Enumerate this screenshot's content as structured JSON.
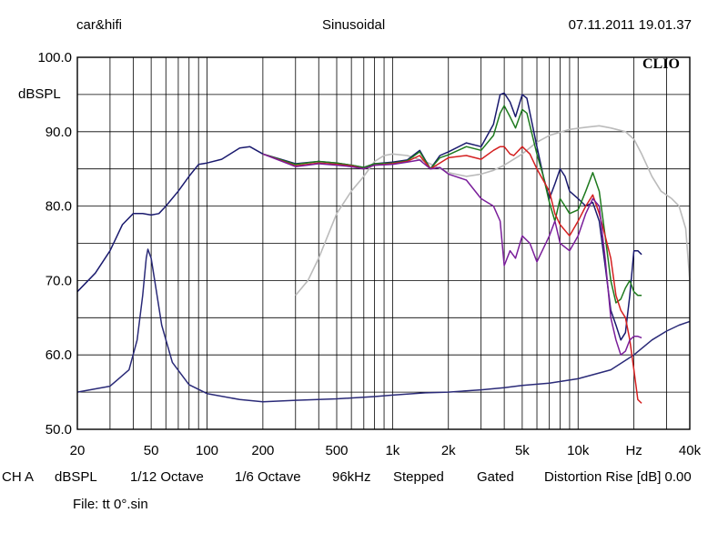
{
  "header": {
    "left": "car&hifi",
    "center": "Sinusoidal",
    "right": "07.11.2011 19.01.37"
  },
  "brand": "CLIO",
  "info": {
    "channel": "CH A",
    "unit": "dBSPL",
    "smoothing1": "1/12 Octave",
    "smoothing2": "1/6 Octave",
    "rate": "96kHz",
    "mode": "Stepped",
    "window": "Gated",
    "distortion": "Distortion Rise [dB] 0.00"
  },
  "file": "File: tt 0°.sin",
  "chart_data": {
    "type": "line",
    "title": "Sinusoidal",
    "ylabel": "dBSPL",
    "xlabel": "Hz",
    "xscale": "log",
    "xlim": [
      20,
      40000
    ],
    "ylim": [
      50,
      100
    ],
    "grid": true,
    "y_ticks": [
      "50.0",
      "60.0",
      "70.0",
      "80.0",
      "90.0",
      "100.0"
    ],
    "x_ticks": [
      {
        "v": 20,
        "label": "20"
      },
      {
        "v": 50,
        "label": "50"
      },
      {
        "v": 100,
        "label": "100"
      },
      {
        "v": 200,
        "label": "200"
      },
      {
        "v": 500,
        "label": "500"
      },
      {
        "v": 1000,
        "label": "1k"
      },
      {
        "v": 2000,
        "label": "2k"
      },
      {
        "v": 5000,
        "label": "5k"
      },
      {
        "v": 10000,
        "label": "10k"
      },
      {
        "v": 20000,
        "label": "Hz"
      },
      {
        "v": 40000,
        "label": "40k"
      }
    ],
    "series": [
      {
        "name": "impedance",
        "color": "#2a2a78",
        "points": [
          [
            20,
            55
          ],
          [
            30,
            55.8
          ],
          [
            38,
            58
          ],
          [
            42,
            62
          ],
          [
            45,
            68
          ],
          [
            47,
            73
          ],
          [
            48,
            74.2
          ],
          [
            50,
            73
          ],
          [
            53,
            69
          ],
          [
            57,
            64
          ],
          [
            65,
            59
          ],
          [
            80,
            56
          ],
          [
            100,
            54.8
          ],
          [
            150,
            54
          ],
          [
            200,
            53.7
          ],
          [
            300,
            53.9
          ],
          [
            500,
            54.1
          ],
          [
            800,
            54.4
          ],
          [
            1000,
            54.6
          ],
          [
            1500,
            54.9
          ],
          [
            2000,
            55
          ],
          [
            3000,
            55.3
          ],
          [
            4000,
            55.6
          ],
          [
            5000,
            55.9
          ],
          [
            7000,
            56.2
          ],
          [
            10000,
            56.8
          ],
          [
            15000,
            58
          ],
          [
            20000,
            60
          ],
          [
            25000,
            62
          ],
          [
            30000,
            63.2
          ],
          [
            35000,
            64
          ],
          [
            40000,
            64.5
          ]
        ]
      },
      {
        "name": "distortion-k2",
        "color": "#bbbbbb",
        "points": [
          [
            300,
            68
          ],
          [
            350,
            70
          ],
          [
            400,
            73
          ],
          [
            500,
            79
          ],
          [
            600,
            82
          ],
          [
            700,
            84
          ],
          [
            800,
            86
          ],
          [
            900,
            86.8
          ],
          [
            1000,
            87
          ],
          [
            1200,
            86.8
          ],
          [
            1500,
            86
          ],
          [
            2000,
            84.5
          ],
          [
            2500,
            84
          ],
          [
            3000,
            84.3
          ],
          [
            3500,
            84.8
          ],
          [
            4000,
            85.5
          ],
          [
            5000,
            87
          ],
          [
            6000,
            88.6
          ],
          [
            7000,
            89.5
          ],
          [
            9000,
            90.3
          ],
          [
            11000,
            90.6
          ],
          [
            13000,
            90.8
          ],
          [
            15000,
            90.5
          ],
          [
            18000,
            90
          ],
          [
            20000,
            89
          ],
          [
            22000,
            87
          ],
          [
            25000,
            84
          ],
          [
            28000,
            82
          ],
          [
            32000,
            81
          ],
          [
            35000,
            80
          ],
          [
            38000,
            77
          ],
          [
            40000,
            70
          ]
        ]
      },
      {
        "name": "axis-0deg",
        "color": "#1a1a6e",
        "points": [
          [
            20,
            68.5
          ],
          [
            25,
            71
          ],
          [
            30,
            74
          ],
          [
            35,
            77.5
          ],
          [
            40,
            79
          ],
          [
            45,
            79
          ],
          [
            50,
            78.8
          ],
          [
            55,
            79
          ],
          [
            60,
            80
          ],
          [
            70,
            82
          ],
          [
            80,
            84
          ],
          [
            90,
            85.6
          ],
          [
            100,
            85.8
          ],
          [
            120,
            86.3
          ],
          [
            150,
            87.8
          ],
          [
            170,
            88
          ],
          [
            200,
            87
          ],
          [
            250,
            86.3
          ],
          [
            300,
            85.7
          ],
          [
            400,
            86
          ],
          [
            500,
            85.8
          ],
          [
            600,
            85.5
          ],
          [
            700,
            85.2
          ],
          [
            800,
            85.7
          ],
          [
            1000,
            85.9
          ],
          [
            1200,
            86.2
          ],
          [
            1400,
            87.5
          ],
          [
            1600,
            85
          ],
          [
            1800,
            86.8
          ],
          [
            2000,
            87.3
          ],
          [
            2500,
            88.5
          ],
          [
            3000,
            88
          ],
          [
            3500,
            91
          ],
          [
            3800,
            95
          ],
          [
            4000,
            95.2
          ],
          [
            4300,
            94
          ],
          [
            4600,
            92
          ],
          [
            5000,
            95
          ],
          [
            5300,
            94.5
          ],
          [
            6000,
            88
          ],
          [
            6500,
            84
          ],
          [
            7000,
            81
          ],
          [
            7500,
            83
          ],
          [
            8000,
            85
          ],
          [
            8500,
            84
          ],
          [
            9000,
            82
          ],
          [
            10000,
            81
          ],
          [
            11000,
            80
          ],
          [
            12000,
            80.5
          ],
          [
            13000,
            78
          ],
          [
            14000,
            72
          ],
          [
            15000,
            66
          ],
          [
            16000,
            64
          ],
          [
            17000,
            62
          ],
          [
            18000,
            63
          ],
          [
            19000,
            68
          ],
          [
            20000,
            74
          ],
          [
            21000,
            74
          ],
          [
            22000,
            73.5
          ]
        ]
      },
      {
        "name": "angle-15deg",
        "color": "#1e7a1e",
        "points": [
          [
            200,
            87
          ],
          [
            300,
            85.6
          ],
          [
            400,
            86
          ],
          [
            500,
            85.8
          ],
          [
            600,
            85.5
          ],
          [
            700,
            85.2
          ],
          [
            800,
            85.7
          ],
          [
            1000,
            85.8
          ],
          [
            1200,
            86.1
          ],
          [
            1400,
            87.3
          ],
          [
            1600,
            85
          ],
          [
            1800,
            86.5
          ],
          [
            2000,
            86.9
          ],
          [
            2500,
            88
          ],
          [
            3000,
            87.5
          ],
          [
            3500,
            89.5
          ],
          [
            3800,
            92.5
          ],
          [
            4000,
            93.5
          ],
          [
            4300,
            92
          ],
          [
            4600,
            90.5
          ],
          [
            5000,
            93
          ],
          [
            5300,
            92.5
          ],
          [
            6000,
            87
          ],
          [
            6500,
            84
          ],
          [
            7000,
            80.5
          ],
          [
            7500,
            78
          ],
          [
            8000,
            81
          ],
          [
            8500,
            80
          ],
          [
            9000,
            79
          ],
          [
            10000,
            79.5
          ],
          [
            11000,
            82
          ],
          [
            12000,
            84.5
          ],
          [
            13000,
            82
          ],
          [
            14000,
            76
          ],
          [
            15000,
            70
          ],
          [
            16000,
            67
          ],
          [
            17000,
            67.5
          ],
          [
            18000,
            69
          ],
          [
            19000,
            70
          ],
          [
            20000,
            68.5
          ],
          [
            21000,
            68
          ],
          [
            22000,
            68
          ]
        ]
      },
      {
        "name": "angle-30deg",
        "color": "#d42020",
        "points": [
          [
            200,
            87
          ],
          [
            300,
            85.4
          ],
          [
            400,
            85.8
          ],
          [
            500,
            85.6
          ],
          [
            600,
            85.4
          ],
          [
            700,
            85
          ],
          [
            800,
            85.5
          ],
          [
            1000,
            85.7
          ],
          [
            1200,
            86
          ],
          [
            1400,
            86.8
          ],
          [
            1600,
            85
          ],
          [
            1800,
            85.8
          ],
          [
            2000,
            86.5
          ],
          [
            2500,
            86.8
          ],
          [
            3000,
            86.3
          ],
          [
            3500,
            87.5
          ],
          [
            3800,
            88
          ],
          [
            4000,
            88
          ],
          [
            4300,
            87
          ],
          [
            4500,
            86.8
          ],
          [
            5000,
            88
          ],
          [
            5500,
            87
          ],
          [
            6000,
            85
          ],
          [
            7000,
            82
          ],
          [
            7500,
            79
          ],
          [
            8000,
            77.5
          ],
          [
            9000,
            76
          ],
          [
            10000,
            78
          ],
          [
            11000,
            80
          ],
          [
            12000,
            81.5
          ],
          [
            13000,
            79
          ],
          [
            14000,
            76
          ],
          [
            15000,
            73
          ],
          [
            16000,
            68
          ],
          [
            17000,
            66
          ],
          [
            18000,
            65
          ],
          [
            19000,
            62
          ],
          [
            20000,
            58
          ],
          [
            21000,
            54
          ],
          [
            22000,
            53.5
          ]
        ]
      },
      {
        "name": "angle-45deg",
        "color": "#7a1e9a",
        "points": [
          [
            200,
            87
          ],
          [
            300,
            85.3
          ],
          [
            400,
            85.7
          ],
          [
            500,
            85.5
          ],
          [
            600,
            85.3
          ],
          [
            700,
            85
          ],
          [
            800,
            85.5
          ],
          [
            1000,
            85.6
          ],
          [
            1200,
            85.9
          ],
          [
            1400,
            86.2
          ],
          [
            1600,
            85
          ],
          [
            1800,
            85.2
          ],
          [
            2000,
            84.3
          ],
          [
            2500,
            83.5
          ],
          [
            3000,
            81
          ],
          [
            3500,
            80
          ],
          [
            3800,
            78
          ],
          [
            4000,
            72
          ],
          [
            4300,
            74
          ],
          [
            4600,
            73
          ],
          [
            5000,
            76
          ],
          [
            5500,
            75
          ],
          [
            6000,
            72.5
          ],
          [
            7000,
            76
          ],
          [
            7500,
            78
          ],
          [
            8000,
            75
          ],
          [
            9000,
            74
          ],
          [
            10000,
            76
          ],
          [
            11000,
            79
          ],
          [
            12000,
            81
          ],
          [
            13000,
            80
          ],
          [
            14000,
            73
          ],
          [
            15000,
            65
          ],
          [
            16000,
            62
          ],
          [
            17000,
            60
          ],
          [
            18000,
            60.5
          ],
          [
            19000,
            62
          ],
          [
            20000,
            62.5
          ],
          [
            21000,
            62.5
          ],
          [
            22000,
            62.3
          ]
        ]
      }
    ]
  }
}
